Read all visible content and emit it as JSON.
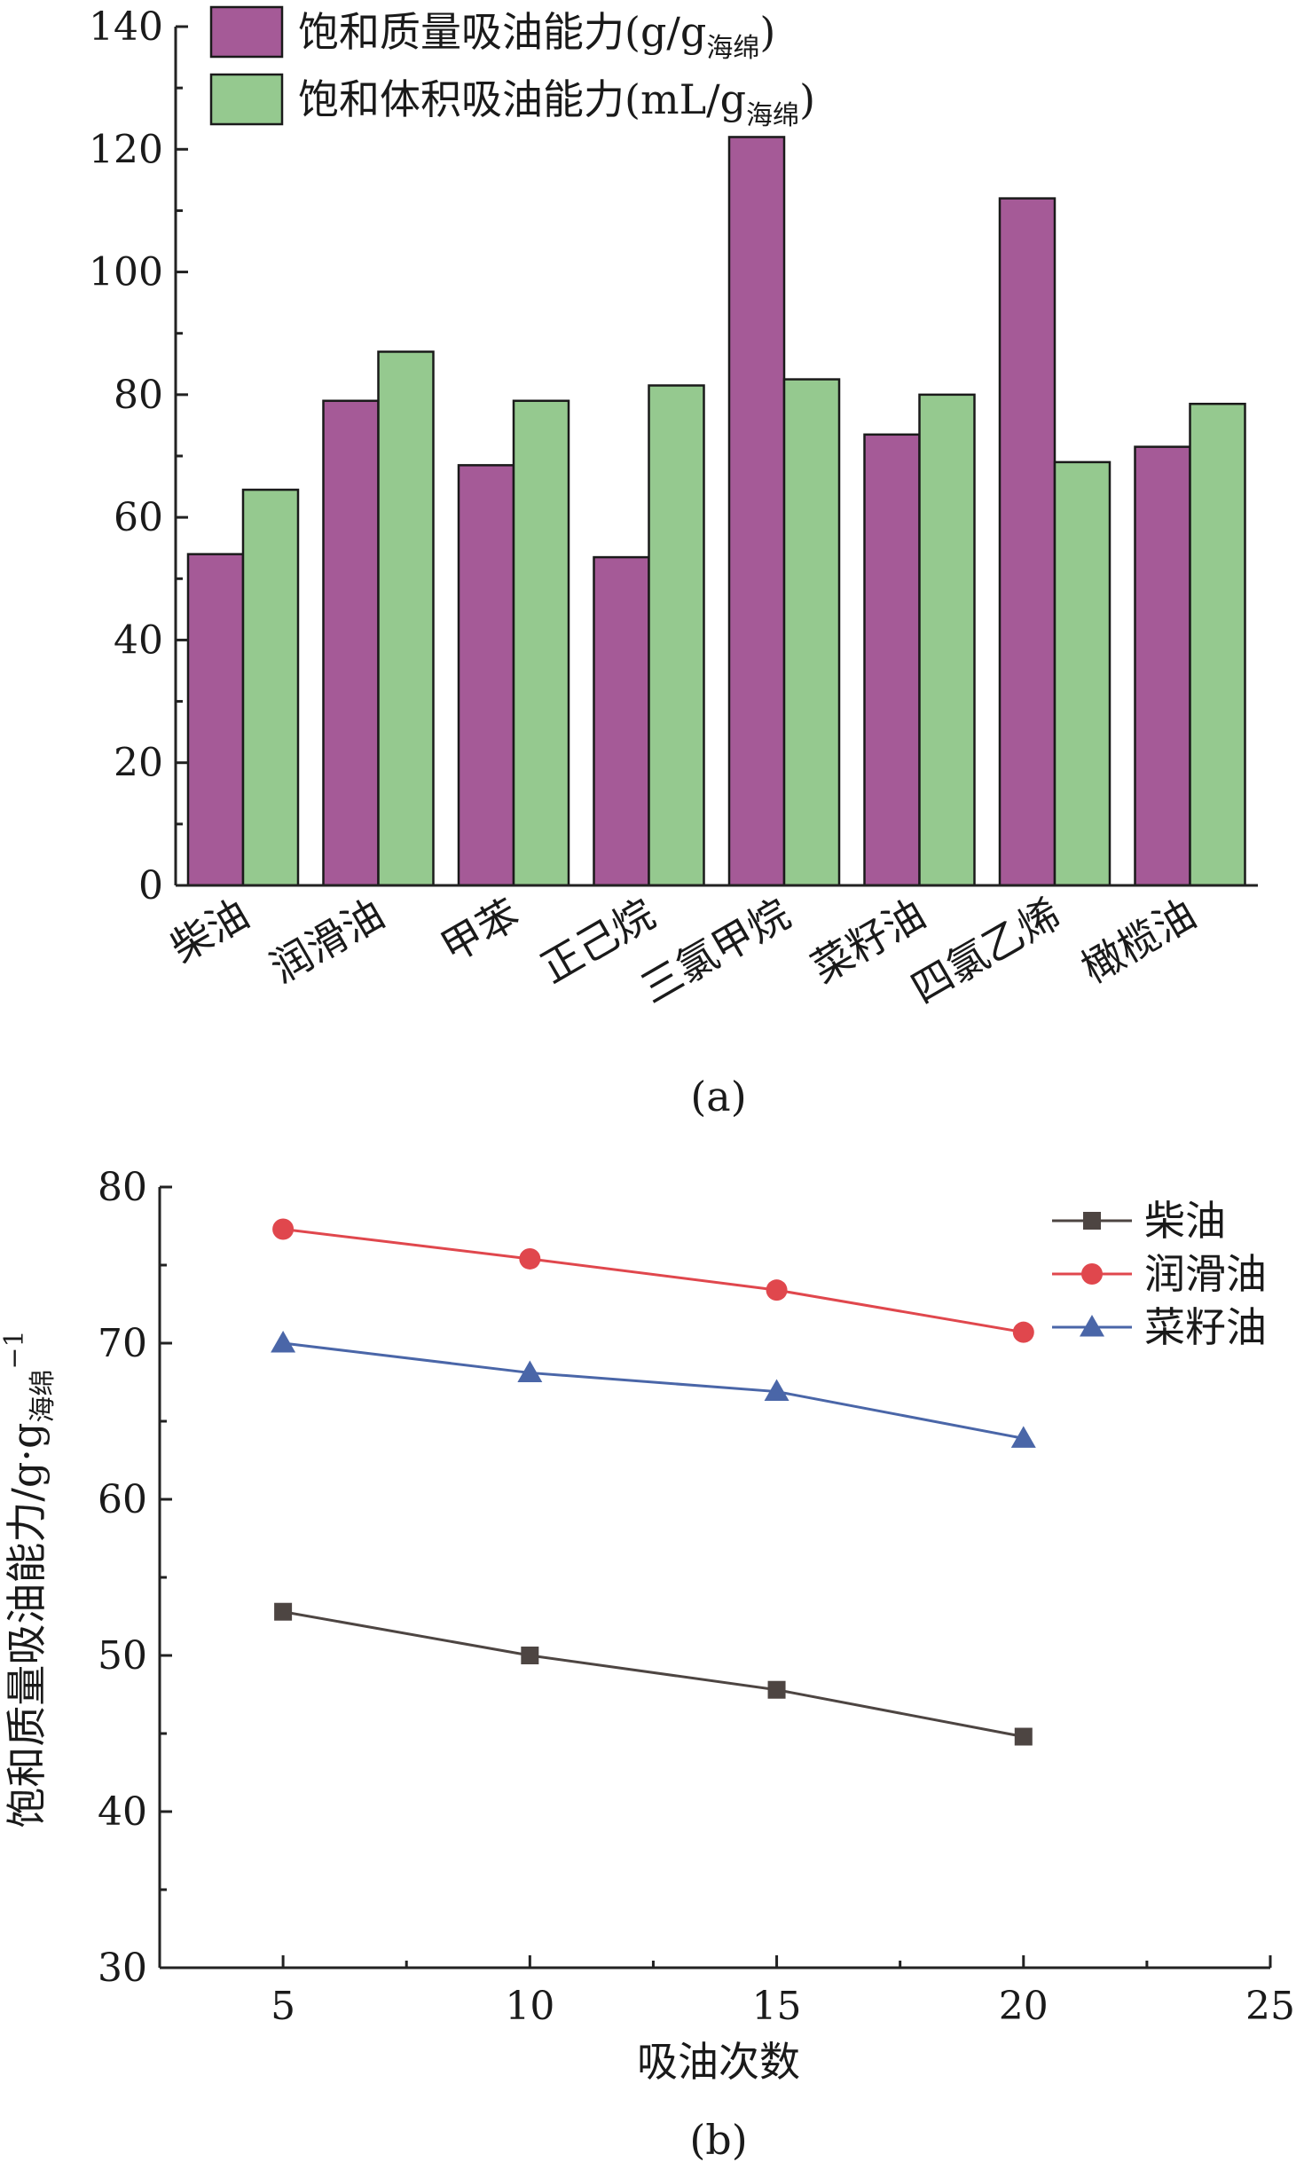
{
  "chart_data": [
    {
      "type": "bar",
      "panel_label": "(a)",
      "categories": [
        "柴油",
        "润滑油",
        "甲苯",
        "正己烷",
        "三氯甲烷",
        "菜籽油",
        "四氯乙烯",
        "橄榄油"
      ],
      "series": [
        {
          "name": "饱和质量吸油能力(g/g",
          "name_sub": "海绵",
          "name_close": ")",
          "color": "#a55a97",
          "values": [
            54,
            79,
            68.5,
            53.5,
            122,
            73.5,
            112,
            71.5
          ]
        },
        {
          "name": "饱和体积吸油能力(mL/g",
          "name_sub": "海绵",
          "name_close": ")",
          "color": "#95c98f",
          "values": [
            64.5,
            87,
            79,
            81.5,
            82.5,
            80,
            69,
            78.5
          ]
        }
      ],
      "ylim": [
        0,
        140
      ],
      "yticks": [
        0,
        20,
        40,
        60,
        80,
        100,
        120,
        140
      ],
      "legend": "top-left"
    },
    {
      "type": "line",
      "panel_label": "(b)",
      "xlabel": "吸油次数",
      "ylabel": "饱和质量吸油能力/g·g",
      "ylabel_sub": "海绵",
      "ylabel_sup": "−1",
      "x": [
        5,
        10,
        15,
        20
      ],
      "xlim": [
        2.5,
        25
      ],
      "ylim": [
        30,
        80
      ],
      "xticks": [
        5,
        10,
        15,
        20,
        25
      ],
      "yticks": [
        30,
        40,
        50,
        60,
        70,
        80
      ],
      "series": [
        {
          "name": "柴油",
          "color": "#4d4542",
          "marker": "square",
          "values": [
            52.8,
            50.0,
            47.8,
            44.8
          ]
        },
        {
          "name": "润滑油",
          "color": "#e0474d",
          "marker": "circle",
          "values": [
            77.3,
            75.4,
            73.4,
            70.7
          ]
        },
        {
          "name": "菜籽油",
          "color": "#4a66a8",
          "marker": "triangle",
          "values": [
            70.0,
            68.1,
            66.9,
            63.9
          ]
        }
      ],
      "legend": "top-right"
    }
  ]
}
